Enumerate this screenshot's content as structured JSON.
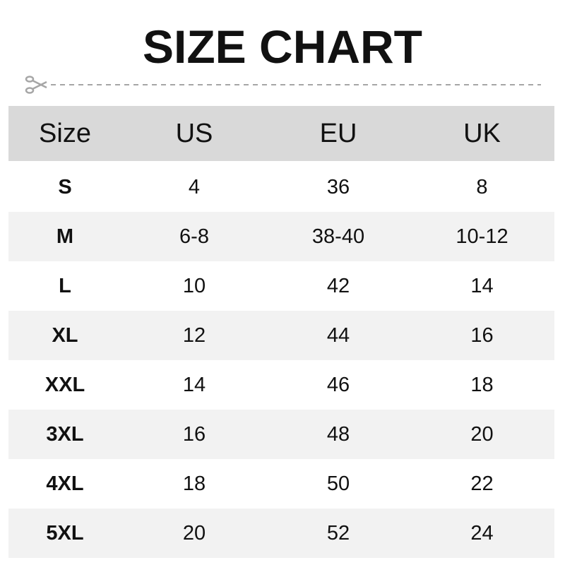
{
  "title": "SIZE CHART",
  "icons": {
    "cut_line": "scissors-icon"
  },
  "colors": {
    "header_bg": "#d9d9d9",
    "alt_row_bg": "#f2f2f2",
    "cut_line": "#a6a6a6"
  },
  "chart_data": {
    "type": "table",
    "columns": [
      "Size",
      "US",
      "EU",
      "UK"
    ],
    "rows": [
      [
        "S",
        "4",
        "36",
        "8"
      ],
      [
        "M",
        "6-8",
        "38-40",
        "10-12"
      ],
      [
        "L",
        "10",
        "42",
        "14"
      ],
      [
        "XL",
        "12",
        "44",
        "16"
      ],
      [
        "XXL",
        "14",
        "46",
        "18"
      ],
      [
        "3XL",
        "16",
        "48",
        "20"
      ],
      [
        "4XL",
        "18",
        "50",
        "22"
      ],
      [
        "5XL",
        "20",
        "52",
        "24"
      ]
    ]
  }
}
